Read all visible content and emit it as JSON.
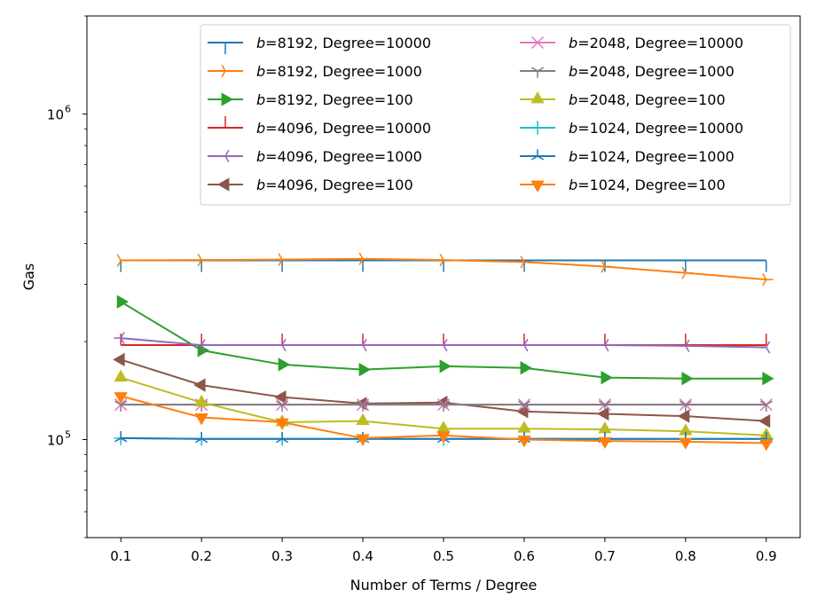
{
  "chart_data": {
    "type": "line",
    "xlabel": "Number of Terms / Degree",
    "ylabel": "Gas",
    "x": [
      0.1,
      0.2,
      0.3,
      0.4,
      0.5,
      0.6,
      0.7,
      0.8,
      0.9
    ],
    "x_ticks": [
      "0.1",
      "0.2",
      "0.3",
      "0.4",
      "0.5",
      "0.6",
      "0.7",
      "0.8",
      "0.9"
    ],
    "xlim": [
      0.058,
      0.942
    ],
    "yscale": "log",
    "ylim": [
      50000,
      2000000
    ],
    "y_ticks": [
      {
        "value": 100000,
        "base": "10",
        "exp": "5"
      },
      {
        "value": 1000000,
        "base": "10",
        "exp": "6"
      }
    ],
    "grid": false,
    "legend": {
      "placement": "top-right",
      "columns": 2
    },
    "series": [
      {
        "b": "8192",
        "degree_text": ", Degree=10000",
        "color": "#1f77b4",
        "marker": "tick-down",
        "values": [
          355000,
          355000,
          355000,
          355000,
          355000,
          355000,
          355000,
          355000,
          355000
        ]
      },
      {
        "b": "8192",
        "degree_text": ", Degree=1000",
        "color": "#ff7f0e",
        "marker": "tri-right",
        "values": [
          355000,
          356000,
          357000,
          359000,
          356000,
          351000,
          340000,
          325000,
          310000
        ]
      },
      {
        "b": "8192",
        "degree_text": ", Degree=100",
        "color": "#2ca02c",
        "marker": "triangle-right",
        "values": [
          265000,
          188000,
          170000,
          164000,
          168000,
          166000,
          155000,
          154000,
          154000
        ]
      },
      {
        "b": "4096",
        "degree_text": ", Degree=10000",
        "color": "#d62728",
        "marker": "tick-up",
        "values": [
          195000,
          195000,
          195000,
          195000,
          195000,
          195000,
          195000,
          195000,
          195000
        ]
      },
      {
        "b": "4096",
        "degree_text": ", Degree=1000",
        "color": "#9467bd",
        "marker": "tri-left",
        "values": [
          205000,
          195000,
          195000,
          195000,
          195000,
          195000,
          195000,
          194000,
          192000
        ]
      },
      {
        "b": "4096",
        "degree_text": ", Degree=100",
        "color": "#8c564b",
        "marker": "triangle-left",
        "values": [
          176000,
          147000,
          135000,
          129000,
          130000,
          122000,
          120000,
          118000,
          114000
        ]
      },
      {
        "b": "2048",
        "degree_text": ", Degree=10000",
        "color": "#e377c2",
        "marker": "x",
        "values": [
          128000,
          128000,
          128000,
          128000,
          128000,
          128000,
          128000,
          128000,
          128000
        ]
      },
      {
        "b": "2048",
        "degree_text": ", Degree=1000",
        "color": "#7f7f7f",
        "marker": "tri-down",
        "values": [
          128000,
          128000,
          128000,
          128000,
          128000,
          128000,
          128000,
          128000,
          128000
        ]
      },
      {
        "b": "2048",
        "degree_text": ", Degree=100",
        "color": "#bcbd22",
        "marker": "triangle-up",
        "values": [
          155000,
          130000,
          113000,
          114000,
          108000,
          108000,
          107500,
          106000,
          103000
        ]
      },
      {
        "b": "1024",
        "degree_text": ", Degree=10000",
        "color": "#17becf",
        "marker": "plus",
        "values": [
          101000,
          100500,
          100500,
          100500,
          100500,
          100500,
          100500,
          100500,
          100500
        ]
      },
      {
        "b": "1024",
        "degree_text": ", Degree=1000",
        "color": "#1f77b4",
        "marker": "tri-up",
        "values": [
          101000,
          100500,
          100500,
          100500,
          100500,
          100500,
          100500,
          100500,
          100500
        ]
      },
      {
        "b": "1024",
        "degree_text": ", Degree=100",
        "color": "#ff7f0e",
        "marker": "triangle-down",
        "values": [
          136000,
          117000,
          113000,
          101000,
          103000,
          100000,
          99000,
          98500,
          97500
        ]
      }
    ]
  }
}
